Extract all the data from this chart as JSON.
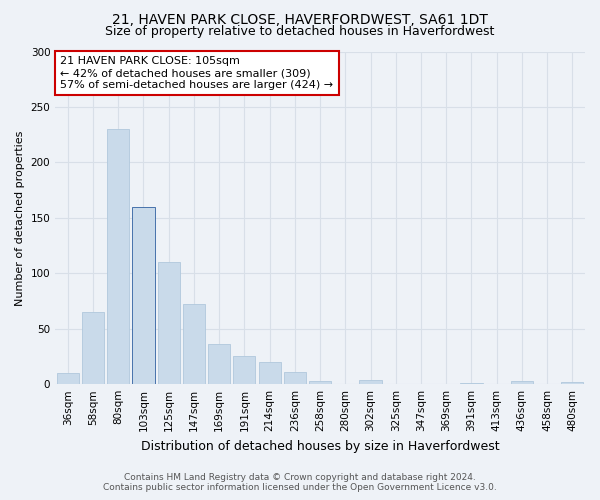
{
  "title": "21, HAVEN PARK CLOSE, HAVERFORDWEST, SA61 1DT",
  "subtitle": "Size of property relative to detached houses in Haverfordwest",
  "xlabel": "Distribution of detached houses by size in Haverfordwest",
  "ylabel": "Number of detached properties",
  "categories": [
    "36sqm",
    "58sqm",
    "80sqm",
    "103sqm",
    "125sqm",
    "147sqm",
    "169sqm",
    "191sqm",
    "214sqm",
    "236sqm",
    "258sqm",
    "280sqm",
    "302sqm",
    "325sqm",
    "347sqm",
    "369sqm",
    "391sqm",
    "413sqm",
    "436sqm",
    "458sqm",
    "480sqm"
  ],
  "values": [
    10,
    65,
    230,
    160,
    110,
    72,
    36,
    25,
    20,
    11,
    3,
    0,
    4,
    0,
    0,
    0,
    1,
    0,
    3,
    0,
    2
  ],
  "bar_color": "#c9daea",
  "bar_edge_color": "#b0c8dc",
  "highlight_bar_index": 3,
  "highlight_bar_color": "#c9daea",
  "highlight_bar_edge_color": "#3060a0",
  "ylim": [
    0,
    300
  ],
  "yticks": [
    0,
    50,
    100,
    150,
    200,
    250,
    300
  ],
  "annotation_text": "21 HAVEN PARK CLOSE: 105sqm\n← 42% of detached houses are smaller (309)\n57% of semi-detached houses are larger (424) →",
  "annotation_box_color": "#ffffff",
  "annotation_box_edge_color": "#cc0000",
  "bg_color": "#eef2f7",
  "grid_color": "#d8dfe8",
  "footer_line1": "Contains HM Land Registry data © Crown copyright and database right 2024.",
  "footer_line2": "Contains public sector information licensed under the Open Government Licence v3.0.",
  "title_fontsize": 10,
  "subtitle_fontsize": 9,
  "xlabel_fontsize": 9,
  "ylabel_fontsize": 8,
  "tick_fontsize": 7.5,
  "annotation_fontsize": 8,
  "footer_fontsize": 6.5
}
